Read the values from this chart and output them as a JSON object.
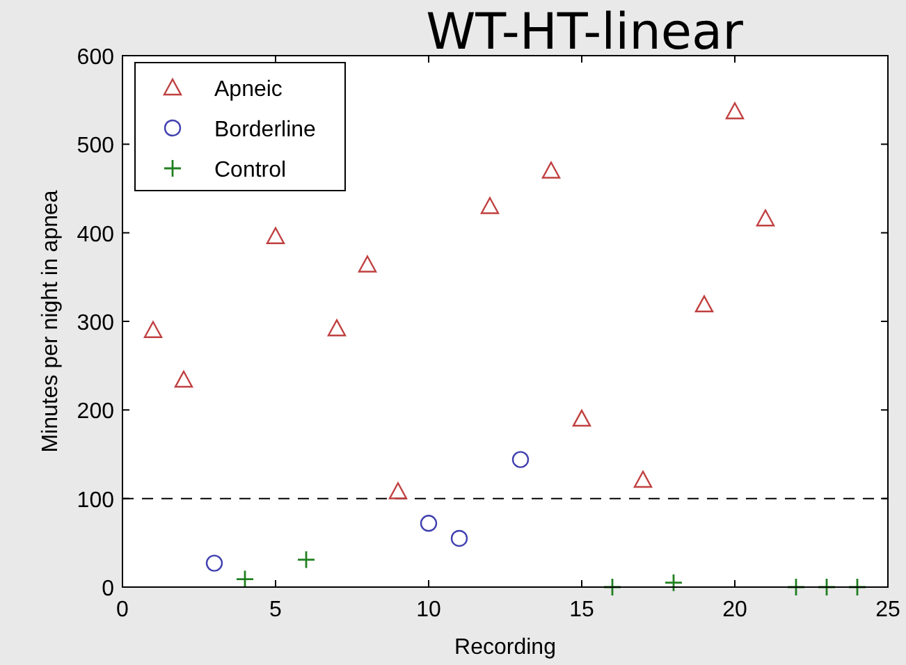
{
  "chart_data": {
    "type": "scatter",
    "title": "WT-HT-linear",
    "xlabel": "Recording",
    "ylabel": "Minutes per night in apnea",
    "xlim": [
      0,
      25
    ],
    "xticks": [
      0,
      5,
      10,
      15,
      20,
      25
    ],
    "ylim": [
      0,
      600
    ],
    "yticks": [
      0,
      100,
      200,
      300,
      400,
      500,
      600
    ],
    "grid": false,
    "legend": "top left",
    "ref_lines": [
      {
        "axis": "y",
        "value": 100,
        "line_style": "dashed",
        "color": "#000000"
      }
    ],
    "series": [
      {
        "name": "Apneic",
        "color": "#c04040",
        "marker": "triangle",
        "x": [
          1,
          2,
          5,
          7,
          8,
          9,
          12,
          14,
          15,
          17,
          19,
          20,
          21
        ],
        "values": [
          290,
          234,
          396,
          292,
          364,
          108,
          430,
          470,
          190,
          121,
          319,
          537,
          416
        ]
      },
      {
        "name": "Borderline",
        "color": "#4040b0",
        "marker": "circle",
        "x": [
          3,
          10,
          11,
          13
        ],
        "values": [
          27,
          72,
          55,
          144
        ]
      },
      {
        "name": "Control",
        "color": "#208020",
        "marker": "cross",
        "x": [
          4,
          6,
          16,
          18,
          22,
          23,
          24
        ],
        "values": [
          9,
          31,
          0,
          5,
          0,
          0,
          0
        ]
      }
    ]
  }
}
